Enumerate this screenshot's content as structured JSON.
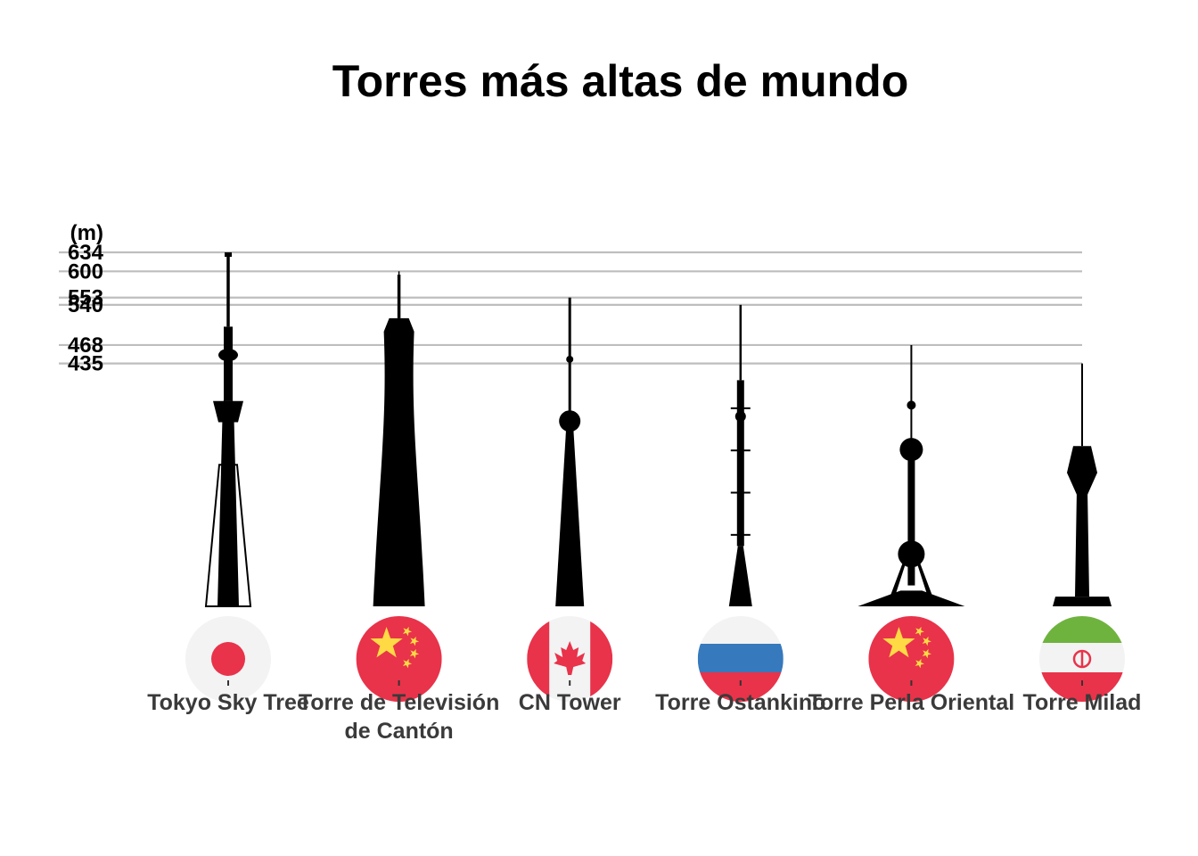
{
  "chart_data": {
    "type": "bar",
    "title": "Torres más altas de mundo",
    "ylabel": "(m)",
    "yticks": [
      634,
      600,
      553,
      540,
      468,
      435
    ],
    "ylim": [
      0,
      634
    ],
    "grid": true,
    "categories": [
      "Tokyo Sky Tree",
      "Torre de Televisión de Cantón",
      "CN Tower",
      "Torre Ostankino",
      "Torre Perla Oriental",
      "Torre Milad"
    ],
    "label_lines": [
      [
        "Tokyo Sky Tree"
      ],
      [
        "Torre de Televisión",
        "de Cantón"
      ],
      [
        "CN Tower"
      ],
      [
        "Torre Ostankino"
      ],
      [
        "Torre Perla Oriental"
      ],
      [
        "Torre Milad"
      ]
    ],
    "values": [
      634,
      600,
      553,
      540,
      468,
      435
    ],
    "flags": [
      "japan",
      "china",
      "canada",
      "russia",
      "china",
      "iran"
    ],
    "colors": {
      "bar": "#000000",
      "grid": "#bebebe",
      "flag_red": "#e8334a",
      "flag_white": "#f3f3f3",
      "flag_yellow": "#ffda44",
      "flag_blue": "#3679bd",
      "flag_green": "#6fb33f"
    }
  }
}
